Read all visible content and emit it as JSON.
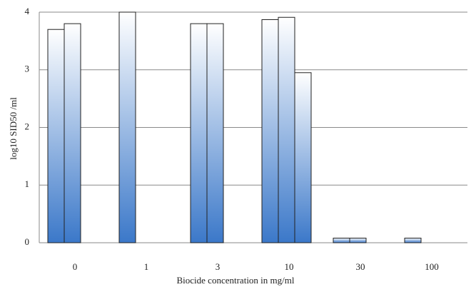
{
  "chart_data": {
    "type": "bar",
    "x_label": "Biocide concentration in mg/ml",
    "y_label": "log10 SID50 /ml",
    "categories": [
      "0",
      "1",
      "3",
      "10",
      "30",
      "100"
    ],
    "series": [
      {
        "values": [
          3.7,
          4.0,
          3.8,
          3.87,
          0.08,
          0.08
        ]
      },
      {
        "values": [
          3.8,
          null,
          3.8,
          3.91,
          0.08,
          null
        ]
      },
      {
        "values": [
          null,
          null,
          null,
          2.95,
          null,
          null
        ]
      }
    ],
    "color": "#3b78c9",
    "ylim": [
      0,
      4
    ],
    "yticks": [
      0,
      1,
      2,
      3,
      4
    ],
    "grid": true
  }
}
